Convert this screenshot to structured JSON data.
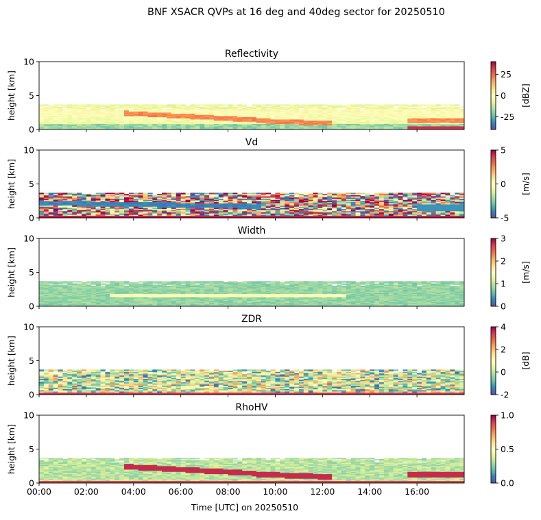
{
  "figure_title": "BNF XSACR QVPs at 16 deg and 40deg sector for 20250510",
  "chart_data": [
    {
      "type": "heatmap",
      "title": "Reflectivity",
      "ylabel": "height [km]",
      "ylim": [
        0,
        10
      ],
      "yticks": [
        0,
        5,
        10
      ],
      "xlim": [
        0,
        18
      ],
      "xticks_hours": [
        0,
        2,
        4,
        6,
        8,
        10,
        12,
        14,
        16
      ],
      "show_xticklabels": false,
      "colorbar": {
        "label": "[dBZ]",
        "min": -40,
        "max": 40,
        "ticks": [
          -25,
          0,
          25
        ],
        "colormap": "Spectral_r"
      },
      "field": "reflectivity"
    },
    {
      "type": "heatmap",
      "title": "Vd",
      "ylabel": "height [km]",
      "ylim": [
        0,
        10
      ],
      "yticks": [
        0,
        5,
        10
      ],
      "xlim": [
        0,
        18
      ],
      "xticks_hours": [
        0,
        2,
        4,
        6,
        8,
        10,
        12,
        14,
        16
      ],
      "show_xticklabels": false,
      "colorbar": {
        "label": "[m/s]",
        "min": -5,
        "max": 5,
        "ticks": [
          -5,
          0,
          5
        ],
        "colormap": "Spectral_r"
      },
      "field": "vd"
    },
    {
      "type": "heatmap",
      "title": "Width",
      "ylabel": "height [km]",
      "ylim": [
        0,
        10
      ],
      "yticks": [
        0,
        5,
        10
      ],
      "xlim": [
        0,
        18
      ],
      "xticks_hours": [
        0,
        2,
        4,
        6,
        8,
        10,
        12,
        14,
        16
      ],
      "show_xticklabels": false,
      "colorbar": {
        "label": "[m/s]",
        "min": 0,
        "max": 3,
        "ticks": [
          0,
          1,
          2,
          3
        ],
        "colormap": "Spectral_r"
      },
      "field": "width"
    },
    {
      "type": "heatmap",
      "title": "ZDR",
      "ylabel": "height [km]",
      "ylim": [
        0,
        10
      ],
      "yticks": [
        0,
        5,
        10
      ],
      "xlim": [
        0,
        18
      ],
      "xticks_hours": [
        0,
        2,
        4,
        6,
        8,
        10,
        12,
        14,
        16
      ],
      "show_xticklabels": false,
      "colorbar": {
        "label": "[dB]",
        "min": -2,
        "max": 4,
        "ticks": [
          -2,
          0,
          2,
          4
        ],
        "colormap": "Spectral_r"
      },
      "field": "zdr"
    },
    {
      "type": "heatmap",
      "title": "RhoHV",
      "ylabel": "height [km]",
      "xlabel": "Time [UTC] on 20250510",
      "ylim": [
        0,
        10
      ],
      "yticks": [
        0,
        5,
        10
      ],
      "xlim": [
        0,
        18
      ],
      "xticks_hours": [
        0,
        2,
        4,
        6,
        8,
        10,
        12,
        14,
        16
      ],
      "xticklabels": [
        "00:00",
        "02:00",
        "04:00",
        "06:00",
        "08:00",
        "10:00",
        "12:00",
        "14:00",
        "16:00"
      ],
      "show_xticklabels": true,
      "colorbar": {
        "label": "",
        "min": 0,
        "max": 1,
        "ticks": [
          0.0,
          0.5,
          1.0
        ],
        "ticklabels": [
          "0.0",
          "0.5",
          "1.0"
        ],
        "colormap": "Spectral_r"
      },
      "field": "rhohv"
    }
  ]
}
